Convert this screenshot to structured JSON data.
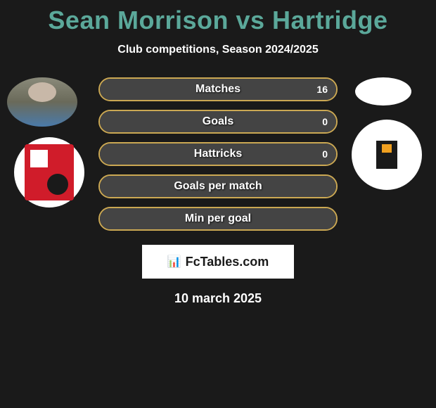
{
  "title": "Sean Morrison vs Hartridge",
  "subtitle": "Club competitions, Season 2024/2025",
  "date": "10 march 2025",
  "watermark_text": "FcTables.com",
  "colors": {
    "title_color": "#5ba89a",
    "text_color": "#ffffff",
    "background": "#1a1a1a",
    "bar_border": "#cba853",
    "bar_fill": "#444444"
  },
  "stats": [
    {
      "label": "Matches",
      "left_value": "",
      "right_value": "16",
      "left_pct": 0,
      "right_pct": 100
    },
    {
      "label": "Goals",
      "left_value": "",
      "right_value": "0",
      "left_pct": 0,
      "right_pct": 100
    },
    {
      "label": "Hattricks",
      "left_value": "",
      "right_value": "0",
      "left_pct": 0,
      "right_pct": 100
    },
    {
      "label": "Goals per match",
      "left_value": "",
      "right_value": "",
      "left_pct": 0,
      "right_pct": 100
    },
    {
      "label": "Min per goal",
      "left_value": "",
      "right_value": "",
      "left_pct": 0,
      "right_pct": 100
    }
  ]
}
